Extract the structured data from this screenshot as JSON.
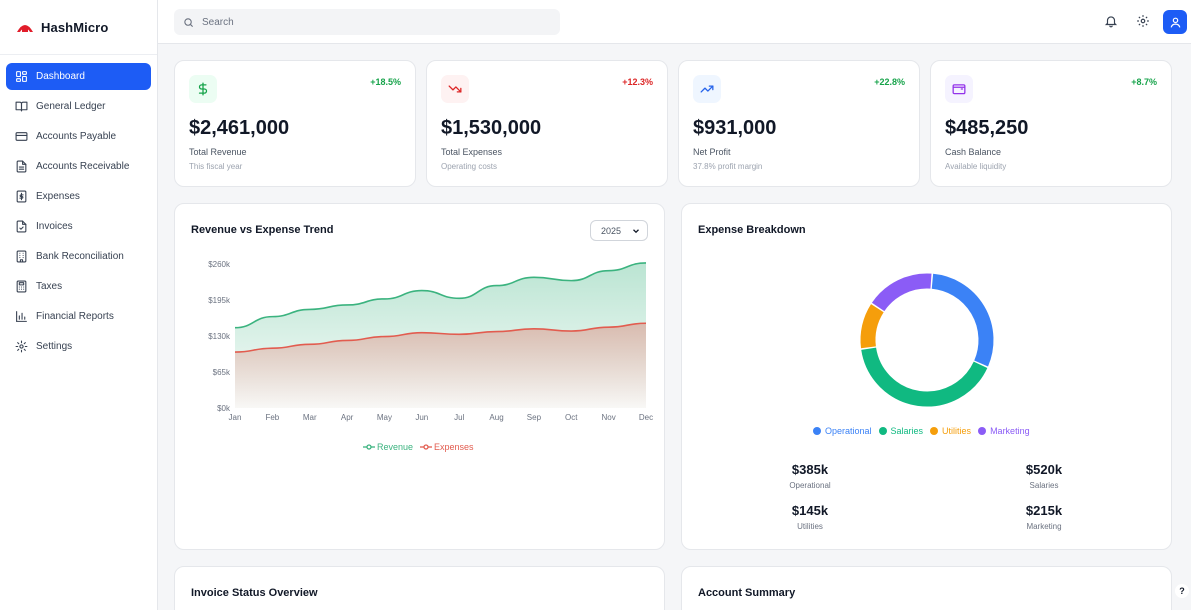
{
  "brand": {
    "name": "HashMicro"
  },
  "nav": [
    {
      "label": "Dashboard",
      "icon": "dashboard-grid-icon",
      "active": true
    },
    {
      "label": "General Ledger",
      "icon": "book-open-icon"
    },
    {
      "label": "Accounts Payable",
      "icon": "credit-card-icon"
    },
    {
      "label": "Accounts Receivable",
      "icon": "document-icon"
    },
    {
      "label": "Expenses",
      "icon": "dollar-file-icon"
    },
    {
      "label": "Invoices",
      "icon": "file-check-icon"
    },
    {
      "label": "Bank Reconciliation",
      "icon": "building-icon"
    },
    {
      "label": "Taxes",
      "icon": "calculator-icon"
    },
    {
      "label": "Financial Reports",
      "icon": "bar-chart-icon"
    },
    {
      "label": "Settings",
      "icon": "gear-icon"
    }
  ],
  "search": {
    "placeholder": "Search"
  },
  "stats": [
    {
      "value": "$2,461,000",
      "label": "Total Revenue",
      "sub": "This fiscal year",
      "change": "+18.5%",
      "trend": "up",
      "icon": "dollar-icon",
      "color": "#16a34a",
      "bg": "#ecfdf3"
    },
    {
      "value": "$1,530,000",
      "label": "Total Expenses",
      "sub": "Operating costs",
      "change": "+12.3%",
      "trend": "down",
      "icon": "trending-down-icon",
      "color": "#dc2626",
      "bg": "#fef2f2"
    },
    {
      "value": "$931,000",
      "label": "Net Profit",
      "sub": "37.8% profit margin",
      "change": "+22.8%",
      "trend": "up",
      "icon": "trending-up-icon",
      "color": "#2563eb",
      "bg": "#eff6ff"
    },
    {
      "value": "$485,250",
      "label": "Cash Balance",
      "sub": "Available liquidity",
      "change": "+8.7%",
      "trend": "up",
      "icon": "wallet-icon",
      "color": "#9333ea",
      "bg": "#f5f3ff"
    }
  ],
  "trend_panel": {
    "title": "Revenue vs Expense Trend",
    "year": "2025"
  },
  "breakdown_panel": {
    "title": "Expense Breakdown",
    "items": [
      {
        "label": "Operational",
        "value": "$385k"
      },
      {
        "label": "Salaries",
        "value": "$520k"
      },
      {
        "label": "Utilities",
        "value": "$145k"
      },
      {
        "label": "Marketing",
        "value": "$215k"
      }
    ]
  },
  "invoice_panel": {
    "title": "Invoice Status Overview"
  },
  "account_panel": {
    "title": "Account Summary"
  },
  "help": {
    "label": "?"
  },
  "chart_data": [
    {
      "type": "area",
      "title": "Revenue vs Expense Trend",
      "categories": [
        "Jan",
        "Feb",
        "Mar",
        "Apr",
        "May",
        "Jun",
        "Jul",
        "Aug",
        "Sep",
        "Oct",
        "Nov",
        "Dec"
      ],
      "series": [
        {
          "name": "Revenue",
          "color": "#3bb37f",
          "values": [
            145,
            165,
            178,
            186,
            197,
            212,
            198,
            221,
            236,
            230,
            248,
            262
          ]
        },
        {
          "name": "Expenses",
          "color": "#e25c4f",
          "values": [
            101,
            108,
            115,
            122,
            129,
            136,
            133,
            138,
            143,
            139,
            146,
            153
          ]
        }
      ],
      "yticks": [
        "$0k",
        "$65k",
        "$130k",
        "$195k",
        "$260k"
      ],
      "ylim": [
        0,
        260
      ],
      "grid": false,
      "legend": "bottom"
    },
    {
      "type": "pie",
      "title": "Expense Breakdown",
      "categories": [
        "Operational",
        "Salaries",
        "Utilities",
        "Marketing"
      ],
      "values": [
        385,
        520,
        145,
        215
      ],
      "colors": [
        "#3b82f6",
        "#10b981",
        "#f59e0b",
        "#8b5cf6"
      ],
      "legend": "bottom"
    }
  ]
}
